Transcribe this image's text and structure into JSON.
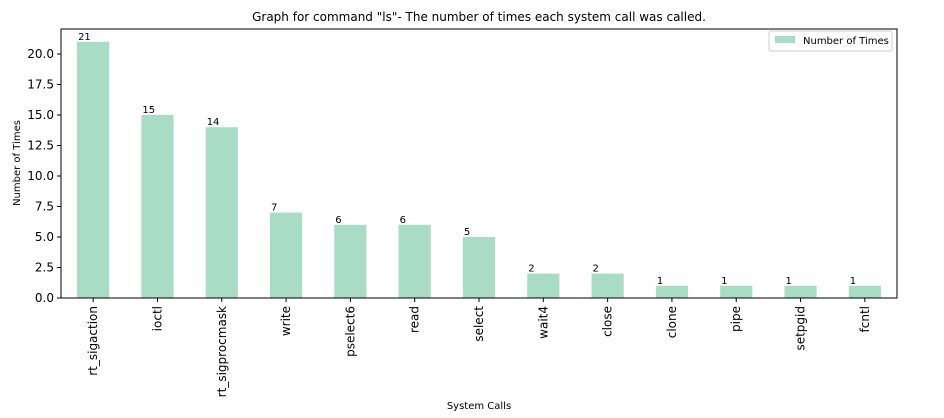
{
  "chart_data": {
    "type": "bar",
    "title": "Graph for command \"ls\"- The number of times each system call was called.",
    "xlabel": "System Calls",
    "ylabel": "Number of Times",
    "categories": [
      "rt_sigaction",
      "ioctl",
      "rt_sigprocmask",
      "write",
      "pselect6",
      "read",
      "select",
      "wait4",
      "close",
      "clone",
      "pipe",
      "setpgid",
      "fcntl"
    ],
    "series": [
      {
        "name": "Number of Times",
        "values": [
          21,
          15,
          14,
          7,
          6,
          6,
          5,
          2,
          2,
          1,
          1,
          1,
          1
        ]
      }
    ],
    "data_labels": [
      "21",
      "15",
      "14",
      "7",
      "6",
      "6",
      "5",
      "2",
      "2",
      "1",
      "1",
      "1",
      "1"
    ],
    "ylim": [
      0,
      22.05
    ],
    "yticks": [
      0,
      2.5,
      5,
      7.5,
      10,
      12.5,
      15,
      17.5,
      20
    ],
    "ytick_labels": [
      "0.0",
      "2.5",
      "5.0",
      "7.5",
      "10.0",
      "12.5",
      "15.0",
      "17.5",
      "20.0"
    ],
    "bar_color": "#a8dcc4",
    "grid": false,
    "legend_position": "top-right"
  }
}
